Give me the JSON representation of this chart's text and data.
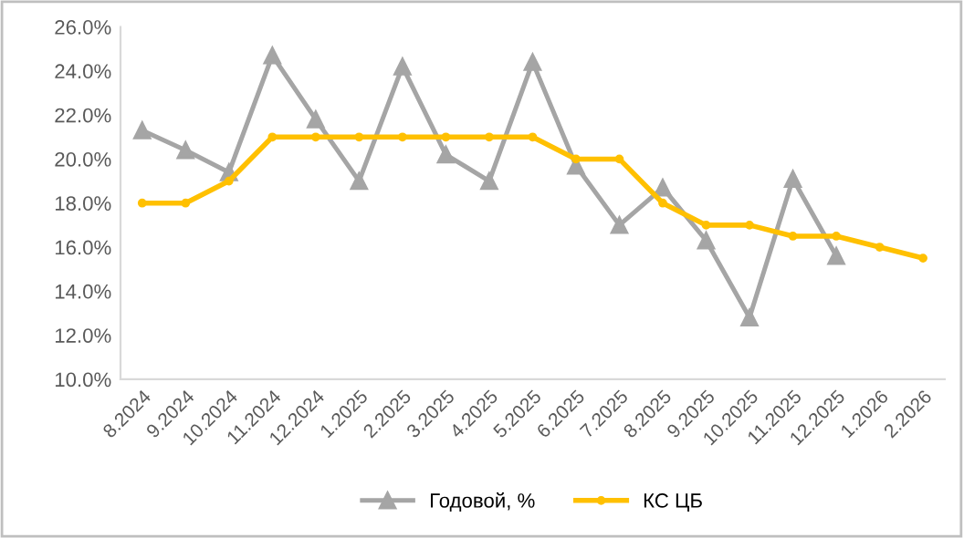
{
  "chart_data": {
    "type": "line",
    "categories": [
      "8.2024",
      "9.2024",
      "10.2024",
      "11.2024",
      "12.2024",
      "1.2025",
      "2.2025",
      "3.2025",
      "4.2025",
      "5.2025",
      "6.2025",
      "7.2025",
      "8.2025",
      "9.2025",
      "10.2025",
      "11.2025",
      "12.2025",
      "1.2026",
      "2.2026"
    ],
    "series": [
      {
        "name": "Годовой, %",
        "color": "#a5a5a5",
        "marker": "triangle",
        "values": [
          21.3,
          20.4,
          19.4,
          24.7,
          21.8,
          19.0,
          24.2,
          20.2,
          19.0,
          24.4,
          19.7,
          17.0,
          18.7,
          16.3,
          12.8,
          19.1,
          15.6,
          null,
          null
        ]
      },
      {
        "name": "КС ЦБ",
        "color": "#ffc000",
        "marker": "circle",
        "values": [
          18,
          18,
          19,
          21,
          21,
          21,
          21,
          21,
          21,
          21,
          20,
          20,
          18,
          17,
          17,
          16.5,
          16.5,
          16,
          15.5
        ]
      }
    ],
    "ylim": [
      10,
      26
    ],
    "yticks": [
      {
        "value": 10,
        "label": "10.0%"
      },
      {
        "value": 12,
        "label": "12.0%"
      },
      {
        "value": 14,
        "label": "14.0%"
      },
      {
        "value": 16,
        "label": "16.0%"
      },
      {
        "value": 18,
        "label": "18.0%"
      },
      {
        "value": 20,
        "label": "20.0%"
      },
      {
        "value": 22,
        "label": "22.0%"
      },
      {
        "value": 24,
        "label": "24.0%"
      },
      {
        "value": 26,
        "label": "26.0%"
      }
    ],
    "grid": false,
    "legend": "bottom",
    "line_style": "solid"
  }
}
